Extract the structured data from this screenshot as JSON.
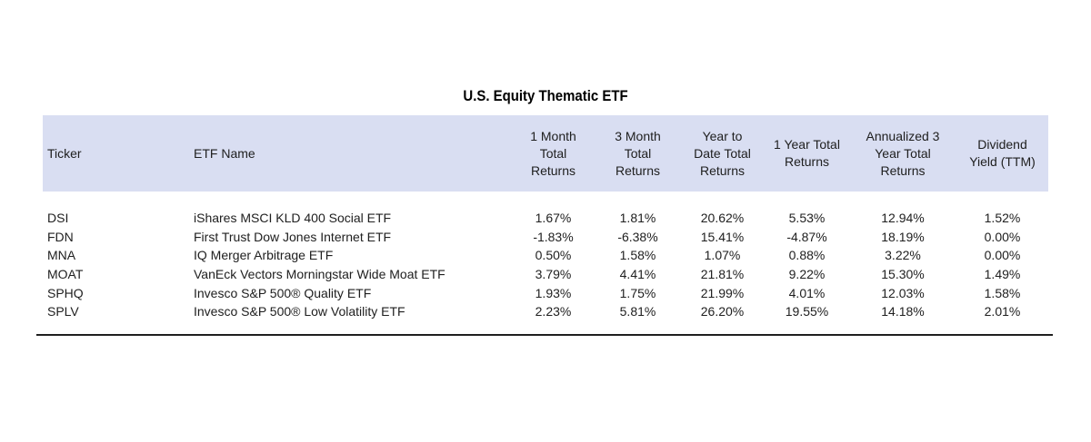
{
  "chart_data": {
    "type": "table",
    "title": "U.S. Equity Thematic ETF",
    "columns": [
      "Ticker",
      "ETF Name",
      "1 Month\nTotal\nReturns",
      "3 Month\nTotal\nReturns",
      "Year to\nDate Total\nReturns",
      "1 Year Total\nReturns",
      "Annualized 3\nYear Total\nReturns",
      "Dividend\nYield (TTM)"
    ],
    "rows": [
      [
        "DSI",
        "iShares MSCI KLD 400 Social ETF",
        "1.67%",
        "1.81%",
        "20.62%",
        "5.53%",
        "12.94%",
        "1.52%"
      ],
      [
        "FDN",
        "First Trust Dow Jones Internet ETF",
        "-1.83%",
        "-6.38%",
        "15.41%",
        "-4.87%",
        "18.19%",
        "0.00%"
      ],
      [
        "MNA",
        "IQ Merger Arbitrage ETF",
        "0.50%",
        "1.58%",
        "1.07%",
        "0.88%",
        "3.22%",
        "0.00%"
      ],
      [
        "MOAT",
        "VanEck Vectors Morningstar Wide Moat ETF",
        "3.79%",
        "4.41%",
        "21.81%",
        "9.22%",
        "15.30%",
        "1.49%"
      ],
      [
        "SPHQ",
        "Invesco S&P 500® Quality ETF",
        "1.93%",
        "1.75%",
        "21.99%",
        "4.01%",
        "12.03%",
        "1.58%"
      ],
      [
        "SPLV",
        "Invesco S&P 500® Low Volatility ETF",
        "2.23%",
        "5.81%",
        "26.20%",
        "19.55%",
        "14.18%",
        "2.01%"
      ]
    ]
  },
  "colors": {
    "header_bg": "#d9def2",
    "text_color": "#202020",
    "rule_color": "#1f1f1f",
    "background": "#ffffff"
  }
}
